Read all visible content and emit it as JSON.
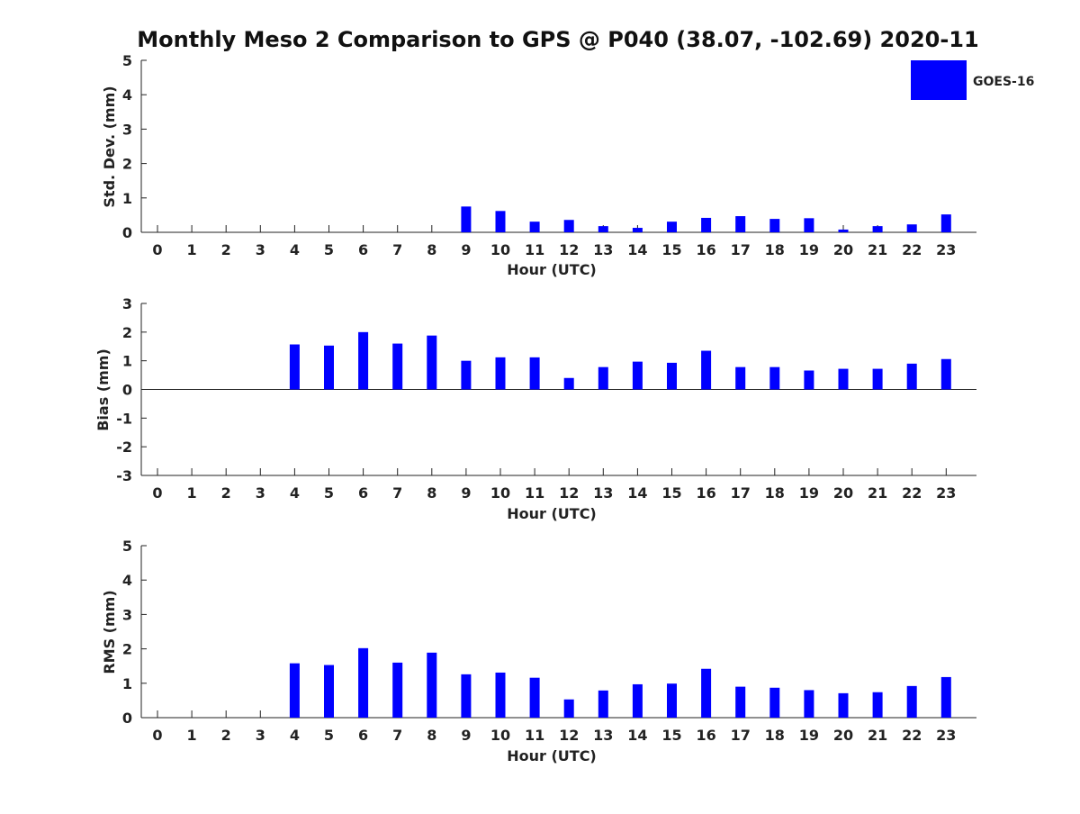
{
  "figure": {
    "title": "Monthly Meso 2 Comparison to GPS @ P040 (38.07, -102.69) 2020-11",
    "bar_color": "#0000ff",
    "axis_color": "#222222"
  },
  "legend": {
    "label": "GOES-16",
    "color": "#0000ff"
  },
  "chart_data": [
    {
      "type": "bar",
      "name": "std-dev",
      "title": "",
      "xlabel": "Hour (UTC)",
      "ylabel": "Std. Dev. (mm)",
      "categories": [
        "0",
        "1",
        "2",
        "3",
        "4",
        "5",
        "6",
        "7",
        "8",
        "9",
        "10",
        "11",
        "12",
        "13",
        "14",
        "15",
        "16",
        "17",
        "18",
        "19",
        "20",
        "21",
        "22",
        "23"
      ],
      "ylim": [
        0,
        5
      ],
      "yticks": [
        0,
        1,
        2,
        3,
        4,
        5
      ],
      "series": [
        {
          "name": "GOES-16",
          "values": [
            null,
            null,
            null,
            null,
            null,
            null,
            null,
            null,
            null,
            0.75,
            0.62,
            0.31,
            0.36,
            0.18,
            0.13,
            0.31,
            0.42,
            0.47,
            0.39,
            0.41,
            0.08,
            0.18,
            0.23,
            0.52
          ]
        }
      ]
    },
    {
      "type": "bar",
      "name": "bias",
      "title": "",
      "xlabel": "Hour (UTC)",
      "ylabel": "Bias (mm)",
      "categories": [
        "0",
        "1",
        "2",
        "3",
        "4",
        "5",
        "6",
        "7",
        "8",
        "9",
        "10",
        "11",
        "12",
        "13",
        "14",
        "15",
        "16",
        "17",
        "18",
        "19",
        "20",
        "21",
        "22",
        "23"
      ],
      "ylim": [
        -3,
        3
      ],
      "yticks": [
        -3,
        -2,
        -1,
        0,
        1,
        2,
        3
      ],
      "zero_line": true,
      "series": [
        {
          "name": "GOES-16",
          "values": [
            null,
            null,
            null,
            null,
            1.57,
            1.53,
            2.0,
            1.6,
            1.88,
            1.0,
            1.12,
            1.12,
            0.4,
            0.78,
            0.97,
            0.93,
            1.35,
            0.78,
            0.78,
            0.66,
            0.72,
            0.72,
            0.9,
            1.06
          ]
        }
      ]
    },
    {
      "type": "bar",
      "name": "rms",
      "title": "",
      "xlabel": "Hour (UTC)",
      "ylabel": "RMS (mm)",
      "categories": [
        "0",
        "1",
        "2",
        "3",
        "4",
        "5",
        "6",
        "7",
        "8",
        "9",
        "10",
        "11",
        "12",
        "13",
        "14",
        "15",
        "16",
        "17",
        "18",
        "19",
        "20",
        "21",
        "22",
        "23"
      ],
      "ylim": [
        0,
        5
      ],
      "yticks": [
        0,
        1,
        2,
        3,
        4,
        5
      ],
      "series": [
        {
          "name": "GOES-16",
          "values": [
            null,
            null,
            null,
            null,
            1.58,
            1.53,
            2.02,
            1.6,
            1.89,
            1.26,
            1.31,
            1.16,
            0.53,
            0.79,
            0.97,
            0.99,
            1.42,
            0.9,
            0.87,
            0.8,
            0.71,
            0.74,
            0.92,
            1.18
          ]
        }
      ]
    }
  ]
}
